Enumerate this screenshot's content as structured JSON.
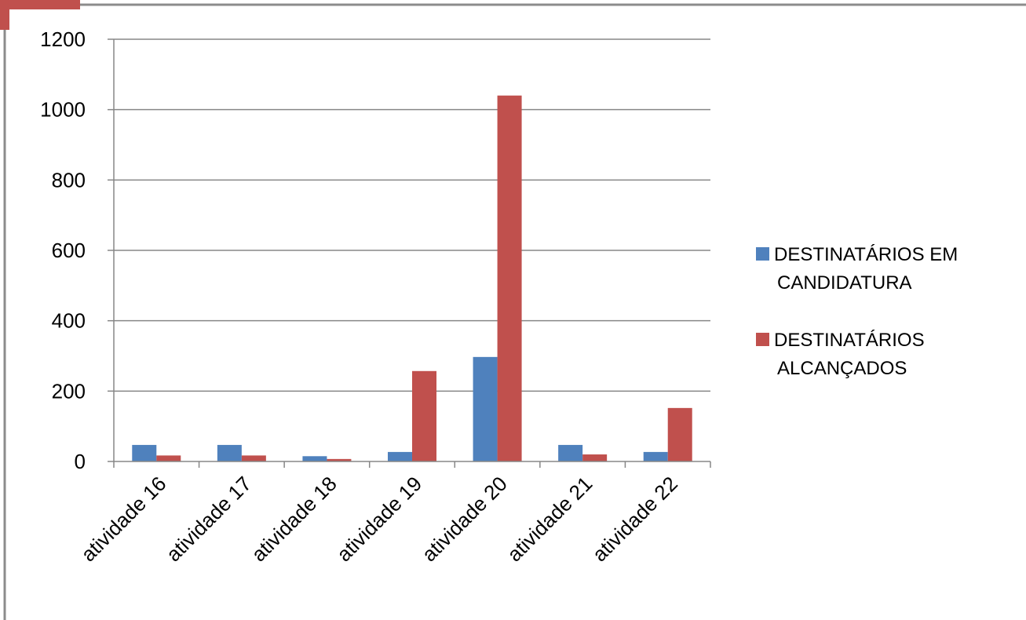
{
  "chart_data": {
    "type": "bar",
    "title": "",
    "xlabel": "",
    "ylabel": "",
    "categories": [
      "atividade 16",
      "atividade 17",
      "atividade 18",
      "atividade 19",
      "atividade 20",
      "atividade 21",
      "atividade 22"
    ],
    "series": [
      {
        "name": "DESTINATÁRIOS EM CANDIDATURA",
        "name_lines": [
          "DESTINATÁRIOS EM",
          "CANDIDATURA"
        ],
        "color": "#4F81BD",
        "values": [
          47,
          47,
          15,
          27,
          297,
          47,
          27
        ]
      },
      {
        "name": "DESTINATÁRIOS ALCANÇADOS",
        "name_lines": [
          "DESTINATÁRIOS",
          "ALCANÇADOS"
        ],
        "color": "#C0504D",
        "values": [
          17,
          17,
          7,
          257,
          1040,
          20,
          152
        ]
      }
    ],
    "ylim": [
      0,
      1200
    ],
    "yticks": [
      0,
      200,
      400,
      600,
      800,
      1000,
      1200
    ],
    "grid": true,
    "legend_position": "right"
  },
  "colors": {
    "gridline": "#878787",
    "axis": "#878787",
    "corner_accent": "#C0504D",
    "frame_border": "#8c8c8c"
  }
}
